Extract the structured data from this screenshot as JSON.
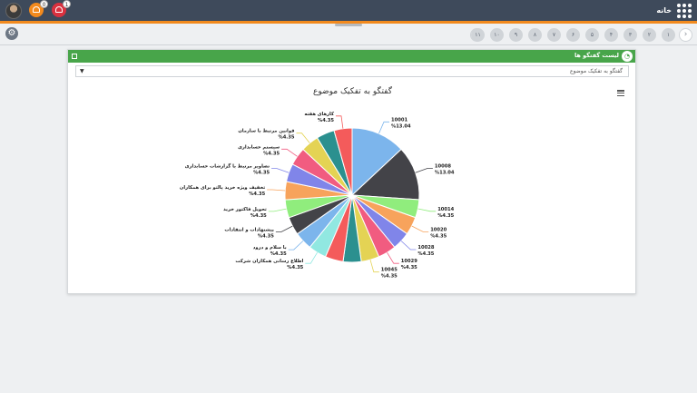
{
  "topbar": {
    "home_label": "خانه",
    "badge_orange": "0",
    "badge_red": "1"
  },
  "steps": [
    "۱",
    "۲",
    "۳",
    "۴",
    "۵",
    "۶",
    "۷",
    "۸",
    "۹",
    "۱۰",
    "۱۱"
  ],
  "panel": {
    "title": "لیست گفتگو ها",
    "select_value": "گفتگو به تفکیک موضوع"
  },
  "chart_data": {
    "type": "pie",
    "title": "گفتگو به تفکیک موضوع",
    "slices": [
      {
        "label": "10001",
        "pct": "%13.04",
        "value": 13.04,
        "color": "#7cb5ec"
      },
      {
        "label": "10008",
        "pct": "%13.04",
        "value": 13.04,
        "color": "#434348"
      },
      {
        "label": "10014",
        "pct": "%4.35",
        "value": 4.35,
        "color": "#90ed7d"
      },
      {
        "label": "10020",
        "pct": "%4.35",
        "value": 4.35,
        "color": "#f7a35c"
      },
      {
        "label": "10028",
        "pct": "%4.35",
        "value": 4.35,
        "color": "#8085e9"
      },
      {
        "label": "10029",
        "pct": "%4.35",
        "value": 4.35,
        "color": "#f15c80"
      },
      {
        "label": "10045",
        "pct": "%4.35",
        "value": 4.35,
        "color": "#e4d354"
      },
      {
        "label": "",
        "pct": "",
        "value": 4.35,
        "color": "#2b908f"
      },
      {
        "label": "",
        "pct": "",
        "value": 4.35,
        "color": "#f45b5b"
      },
      {
        "label": "اطلاع رسانی همکاران شرکت",
        "pct": "%4.35",
        "value": 4.35,
        "color": "#91e8e1"
      },
      {
        "label": "با سلام و درود",
        "pct": "%4.35",
        "value": 4.35,
        "color": "#7cb5ec"
      },
      {
        "label": "پیشنهادات و انتقادات",
        "pct": "%4.35",
        "value": 4.35,
        "color": "#434348"
      },
      {
        "label": "تحویل فاکتور خرید",
        "pct": "%4.35",
        "value": 4.35,
        "color": "#90ed7d"
      },
      {
        "label": "تخفیف ویژه خرید پالتو برای همکاران",
        "pct": "%4.35",
        "value": 4.35,
        "color": "#f7a35c"
      },
      {
        "label": "تصاویر مرتبط با گزارشات حسابداری",
        "pct": "%4.35",
        "value": 4.35,
        "color": "#8085e9"
      },
      {
        "label": "سیستم حسابداری",
        "pct": "%4.35",
        "value": 4.35,
        "color": "#f15c80"
      },
      {
        "label": "قوانین مرتبط با سازمان",
        "pct": "%4.35",
        "value": 4.35,
        "color": "#e4d354"
      },
      {
        "label": "",
        "pct": "",
        "value": 4.35,
        "color": "#2b908f"
      },
      {
        "label": "کارهای هفته",
        "pct": "%4.35",
        "value": 4.35,
        "color": "#f45b5b"
      }
    ]
  }
}
